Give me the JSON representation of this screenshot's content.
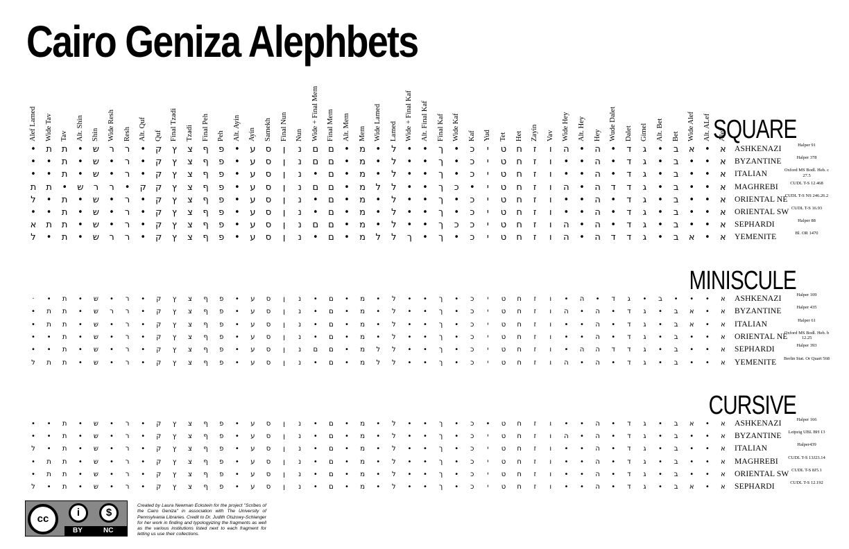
{
  "title": "Cairo Geniza Alephbets",
  "columns": [
    "Alef Lamed",
    "Wide Tav",
    "Tav",
    "Alt. Shin",
    "Shin",
    "Wide Resh",
    "Resh",
    "Alt. Quf",
    "Quf",
    "Final Tzadi",
    "Tzadi",
    "Final Peh",
    "Peh",
    "Alt. Ayin",
    "Ayin",
    "Samekh",
    "Final Nun",
    "Nun",
    "Wide + Final Mem",
    "Final Mem",
    "Alt. Mem",
    "Mem",
    "Wide Lamed",
    "Lamed",
    "Wide + Final Kaf",
    "Alt. Final Kaf",
    "Final Kaf",
    "Wide Kaf",
    "Kaf",
    "Yud",
    "Tet",
    "Het",
    "Zayin",
    "Vav",
    "Wide Hey",
    "Alt. Hey",
    "Hey",
    "Wude Dalet",
    "Dalet",
    "Gimel",
    "Alt. Bet",
    "Bet",
    "Wide Alef",
    "Alt. ALef",
    "Alef"
  ],
  "sections": [
    {
      "name": "SQUARE",
      "rows": [
        {
          "tradition": "ASHKENAZI",
          "source": "Halper 91",
          "glyphs": [
            "•",
            "ת",
            "ת",
            "•",
            "ש",
            "ר",
            "ר",
            "•",
            "ק",
            "ץ",
            "צ",
            "ף",
            "פ",
            "•",
            "ע",
            "ס",
            "ן",
            "נ",
            "ם",
            "ם",
            "•",
            "מ",
            "•",
            "ל",
            "•",
            "•",
            "ך",
            "•",
            "כ",
            "י",
            "ט",
            "ח",
            "ז",
            "ו",
            "ה",
            "•",
            "ה",
            "•",
            "ד",
            "ג",
            "•",
            "ב",
            "א",
            "•",
            "א"
          ]
        },
        {
          "tradition": "BYZANTINE",
          "source": "Halper 378",
          "glyphs": [
            "•",
            "•",
            "ת",
            "•",
            "ש",
            "•",
            "ר",
            "•",
            "ק",
            "ץ",
            "צ",
            "ף",
            "פ",
            "•",
            "ע",
            "ס",
            "ן",
            "נ",
            "ם",
            "ם",
            "•",
            "מ",
            "•",
            "ל",
            "•",
            "•",
            "ך",
            "•",
            "כ",
            "י",
            "ט",
            "ח",
            "ז",
            "ו",
            "•",
            "•",
            "ה",
            "•",
            "ד",
            "ג",
            "•",
            "ב",
            "•",
            "•",
            "א"
          ]
        },
        {
          "tradition": "ITALIAN",
          "source": "Oxford MS Bodl. Heb. c 27.5",
          "glyphs": [
            "•",
            "•",
            "ת",
            "•",
            "ש",
            "•",
            "ר",
            "•",
            "ק",
            "ץ",
            "צ",
            "ף",
            "פ",
            "•",
            "ע",
            "ס",
            "ן",
            "נ",
            "•",
            "ם",
            "•",
            "מ",
            "•",
            "ל",
            "•",
            "•",
            "ך",
            "•",
            "כ",
            "י",
            "ט",
            "ח",
            "ז",
            "ו",
            "•",
            "•",
            "ה",
            "•",
            "ד",
            "ג",
            "•",
            "ב",
            "•",
            "•",
            "א"
          ]
        },
        {
          "tradition": "MAGHREBI",
          "source": "CUDL T-S 12.468",
          "glyphs": [
            "ת",
            "ת",
            "•",
            "ש",
            "ר",
            "ר",
            "•",
            "ק",
            "ק",
            "ץ",
            "צ",
            "ף",
            "פ",
            "•",
            "ע",
            "ס",
            "ן",
            "נ",
            "ם",
            "ם",
            "•",
            "מ",
            "ל",
            "ל",
            "•",
            "•",
            "ך",
            "כ",
            "•",
            "י",
            "ט",
            "ח",
            "ז",
            "ו",
            "ה",
            "•",
            "ה",
            "ד",
            "ד",
            "ג",
            "•",
            "ב",
            "•",
            "•",
            "א"
          ]
        },
        {
          "tradition": "ORIENTAL NE",
          "source": "CUDL T-S NS 246.26.2",
          "glyphs": [
            "ל",
            "•",
            "ת",
            "•",
            "ש",
            "•",
            "ר",
            "•",
            "ק",
            "ץ",
            "צ",
            "ף",
            "פ",
            "•",
            "ע",
            "ס",
            "ן",
            "נ",
            "•",
            "ם",
            "•",
            "מ",
            "•",
            "ל",
            "•",
            "•",
            "ך",
            "•",
            "כ",
            "י",
            "ט",
            "ח",
            "ז",
            "ו",
            "•",
            "•",
            "ה",
            "•",
            "ד",
            "ג",
            "•",
            "ב",
            "•",
            "•",
            "א"
          ]
        },
        {
          "tradition": "ORIENTAL SW",
          "source": "CUDL T-S 16.93",
          "glyphs": [
            "•",
            "•",
            "ת",
            "•",
            "ש",
            "•",
            "ר",
            "•",
            "ק",
            "ץ",
            "צ",
            "ף",
            "פ",
            "•",
            "ע",
            "ס",
            "ן",
            "נ",
            "•",
            "ם",
            "•",
            "מ",
            "•",
            "ל",
            "•",
            "•",
            "ך",
            "•",
            "כ",
            "י",
            "ט",
            "ח",
            "ז",
            "ו",
            "•",
            "•",
            "ה",
            "•",
            "ד",
            "ג",
            "•",
            "ב",
            "•",
            "•",
            "א"
          ]
        },
        {
          "tradition": "SEPHARDI",
          "source": "Halper 88",
          "glyphs": [
            "א",
            "ת",
            "ת",
            "•",
            "ש",
            "•",
            "ר",
            "•",
            "ק",
            "ץ",
            "צ",
            "ף",
            "פ",
            "•",
            "ע",
            "ס",
            "ן",
            "נ",
            "ם",
            "ם",
            "•",
            "מ",
            "•",
            "ל",
            "•",
            "•",
            "ך",
            "כ",
            "כ",
            "י",
            "ט",
            "ח",
            "ז",
            "ו",
            "ה",
            "•",
            "ה",
            "•",
            "ד",
            "ג",
            "•",
            "ב",
            "•",
            "•",
            "א"
          ]
        },
        {
          "tradition": "YEMENITE",
          "source": "Bl. OR 1470",
          "glyphs": [
            "ל",
            "•",
            "ת",
            "•",
            "ש",
            "ר",
            "ר",
            "•",
            "ק",
            "ץ",
            "צ",
            "ף",
            "פ",
            "•",
            "ע",
            "ס",
            "ן",
            "נ",
            "•",
            "ם",
            "•",
            "מ",
            "ל",
            "ל",
            "ך",
            "•",
            "ך",
            "•",
            "כ",
            "י",
            "ט",
            "ח",
            "ז",
            "ו",
            "ה",
            "•",
            "ה",
            "ד",
            "ד",
            "ג",
            "•",
            "ב",
            "א",
            "•",
            "א"
          ]
        }
      ]
    },
    {
      "name": "MINISCULE",
      "rows": [
        {
          "tradition": "ASHKENAZI",
          "source": "Halper 109",
          "glyphs": [
            "·",
            "•",
            "ת",
            "•",
            "ש",
            "•",
            "ר",
            "•",
            "ק",
            "ץ",
            "צ",
            "ף",
            "פ",
            "•",
            "ע",
            "ס",
            "ן",
            "נ",
            "•",
            "ם",
            "•",
            "מ",
            "•",
            "ל",
            "•",
            "•",
            "ך",
            "•",
            "כ",
            "י",
            "ט",
            "ח",
            "ז",
            "ו",
            "•",
            "ה",
            "•",
            "ד",
            "ג",
            "•",
            "ב",
            "•",
            "•",
            "•",
            "א"
          ]
        },
        {
          "tradition": "BYZANTINE",
          "source": "Halper 435",
          "glyphs": [
            "•",
            "ת",
            "ת",
            "•",
            "ש",
            "ר",
            "ר",
            "•",
            "ק",
            "ץ",
            "צ",
            "ף",
            "פ",
            "•",
            "ע",
            "ס",
            "ן",
            "נ",
            "•",
            "ם",
            "•",
            "מ",
            "•",
            "ל",
            "•",
            "•",
            "ך",
            "•",
            "כ",
            "י",
            "ט",
            "ח",
            "ז",
            "ו",
            "ה",
            "•",
            "ה",
            "•",
            "ד",
            "ג",
            "•",
            "ב",
            "א",
            "•",
            "א"
          ]
        },
        {
          "tradition": "ITALIAN",
          "source": "Halper 61",
          "glyphs": [
            "•",
            "ת",
            "ת",
            "•",
            "ש",
            "•",
            "ר",
            "•",
            "ק",
            "ץ",
            "צ",
            "ף",
            "פ",
            "•",
            "ע",
            "ס",
            "ן",
            "נ",
            "•",
            "ם",
            "•",
            "מ",
            "•",
            "ל",
            "•",
            "•",
            "ך",
            "•",
            "כ",
            "י",
            "ט",
            "ח",
            "ז",
            "ו",
            "•",
            "•",
            "ה",
            "•",
            "ד",
            "ג",
            "•",
            "ב",
            "א",
            "•",
            "א"
          ]
        },
        {
          "tradition": "ORIENTAL NE",
          "source": "Oxford MS Bodl. Heb. b 12.25",
          "glyphs": [
            "•",
            "•",
            "ת",
            "•",
            "ש",
            "•",
            "ר",
            "•",
            "ק",
            "ץ",
            "צ",
            "ף",
            "פ",
            "•",
            "ע",
            "ס",
            "ן",
            "נ",
            "•",
            "ם",
            "•",
            "מ",
            "•",
            "ל",
            "•",
            "•",
            "ך",
            "•",
            "כ",
            "י",
            "ט",
            "ח",
            "ז",
            "ו",
            "•",
            "•",
            "ה",
            "•",
            "ד",
            "ג",
            "•",
            "ב",
            "•",
            "•",
            "א"
          ]
        },
        {
          "tradition": "SEPHARDI",
          "source": "Halper 393",
          "glyphs": [
            "•",
            "•",
            "ת",
            "•",
            "ש",
            "•",
            "ר",
            "•",
            "ק",
            "ץ",
            "צ",
            "ף",
            "פ",
            "•",
            "ע",
            "ס",
            "ן",
            "נ",
            "ם",
            "ם",
            "•",
            "מ",
            "ל",
            "ל",
            "•",
            "•",
            "ך",
            "•",
            "כ",
            "י",
            "ט",
            "ח",
            "ז",
            "ו",
            "•",
            "ה",
            "ה",
            "ד",
            "ד",
            "ג",
            "•",
            "ב",
            "•",
            "•",
            "א"
          ]
        },
        {
          "tradition": "YEMENITE",
          "source": "Berlin Stat. Or Quart 568",
          "glyphs": [
            "ל",
            "ת",
            "ת",
            "•",
            "ש",
            "•",
            "ר",
            "•",
            "ק",
            "ץ",
            "צ",
            "ף",
            "פ",
            "•",
            "ע",
            "ס",
            "ן",
            "נ",
            "•",
            "ם",
            "•",
            "מ",
            "ל",
            "ל",
            "•",
            "•",
            "ך",
            "•",
            "כ",
            "י",
            "ט",
            "ח",
            "ז",
            "ו",
            "ה",
            "•",
            "ה",
            "•",
            "ד",
            "ג",
            "•",
            "ב",
            "•",
            "•",
            "א"
          ]
        }
      ]
    },
    {
      "name": "CURSIVE",
      "rows": [
        {
          "tradition": "ASHKENAZI",
          "source": "Halper 166",
          "glyphs": [
            "•",
            "•",
            "ת",
            "•",
            "ש",
            "•",
            "ר",
            "•",
            "ק",
            "ץ",
            "צ",
            "ף",
            "פ",
            "•",
            "ע",
            "ס",
            "ן",
            "נ",
            "•",
            "ם",
            "•",
            "מ",
            "•",
            "ל",
            "•",
            "•",
            "ך",
            "•",
            "כ",
            "•",
            "ט",
            "ח",
            "ז",
            "ו",
            "•",
            "•",
            "ה",
            "•",
            "ד",
            "ג",
            "•",
            "ב",
            "א",
            "•",
            "א"
          ]
        },
        {
          "tradition": "BYZANTINE",
          "source": "Leipzig UBL BH 13",
          "glyphs": [
            "•",
            "•",
            "ת",
            "•",
            "ש",
            "•",
            "ר",
            "•",
            "ק",
            "ץ",
            "צ",
            "ף",
            "פ",
            "•",
            "ע",
            "ס",
            "ן",
            "נ",
            "•",
            "ם",
            "•",
            "מ",
            "•",
            "ל",
            "•",
            "•",
            "ך",
            "•",
            "כ",
            "י",
            "ט",
            "ח",
            "ז",
            "ו",
            "ה",
            "•",
            "ה",
            "•",
            "ד",
            "ג",
            "•",
            "ב",
            "•",
            "•",
            "א"
          ]
        },
        {
          "tradition": "ITALIAN",
          "source": "Halper439",
          "glyphs": [
            "ל",
            "•",
            "ת",
            "•",
            "ש",
            "•",
            "ר",
            "•",
            "ק",
            "ץ",
            "צ",
            "ף",
            "פ",
            "•",
            "ע",
            "ס",
            "ן",
            "נ",
            "•",
            "ם",
            "•",
            "מ",
            "•",
            "ל",
            "•",
            "•",
            "ך",
            "•",
            "כ",
            "י",
            "ט",
            "ח",
            "ז",
            "ו",
            "•",
            "•",
            "ה",
            "•",
            "ד",
            "ג",
            "•",
            "ב",
            "•",
            "•",
            "א"
          ]
        },
        {
          "tradition": "MAGHREBI",
          "source": "CUDL T-S 13J23.14",
          "glyphs": [
            "•",
            "ת",
            "ת",
            "•",
            "ש",
            "•",
            "ר",
            "•",
            "ק",
            "ץ",
            "צ",
            "ף",
            "פ",
            "•",
            "ע",
            "ס",
            "ן",
            "נ",
            "•",
            "ם",
            "•",
            "מ",
            "•",
            "ל",
            "•",
            "•",
            "ך",
            "•",
            "כ",
            "י",
            "ט",
            "ח",
            "ז",
            "ו",
            "•",
            "•",
            "ה",
            "•",
            "ד",
            "ג",
            "•",
            "ב",
            "•",
            "•",
            "א"
          ]
        },
        {
          "tradition": "ORIENTAL SW",
          "source": "CUDL T-S 8J5.1",
          "glyphs": [
            "•",
            "ת",
            "ת",
            "•",
            "ש",
            "•",
            "ר",
            "•",
            "ק",
            "ץ",
            "צ",
            "ף",
            "פ",
            "•",
            "ע",
            "ס",
            "ן",
            "נ",
            "•",
            "ם",
            "•",
            "מ",
            "•",
            "ל",
            "•",
            "•",
            "ך",
            "•",
            "כ",
            "י",
            "ט",
            "ח",
            "ז",
            "ו",
            "•",
            "•",
            "ה",
            "•",
            "ד",
            "ג",
            "•",
            "ב",
            "•",
            "•",
            "א"
          ]
        },
        {
          "tradition": "SEPHARDI",
          "source": "CUDL T-S 12.192",
          "glyphs": [
            "ל",
            "•",
            "ת",
            "•",
            "ש",
            "•",
            "ר",
            "•",
            "ק",
            "ץ",
            "צ",
            "ף",
            "פ",
            "•",
            "ע",
            "ס",
            "ן",
            "נ",
            "•",
            "ם",
            "•",
            "מ",
            "•",
            "ל",
            "•",
            "•",
            "ך",
            "•",
            "כ",
            "י",
            "ט",
            "ח",
            "ז",
            "ו",
            "•",
            "•",
            "ה",
            "•",
            "ד",
            "ג",
            "•",
            "ב",
            "א",
            "•",
            "א"
          ]
        }
      ]
    }
  ],
  "license": {
    "cc": "cc",
    "by": "BY",
    "nc": "NC",
    "by_icon": "person-icon",
    "nc_icon": "no-dollar-icon"
  },
  "credit": "Created by Laura Newman Eckstein for the project \"Scribes of the Cairo Geniza\" in association with The University of Pennsylvania Libraries. Credit to Dr. Judith Olszowy-Schlanger for her work in finding and typologyizing the fragments as well as the various institutions listed next to each fragment for letting us use their collections."
}
